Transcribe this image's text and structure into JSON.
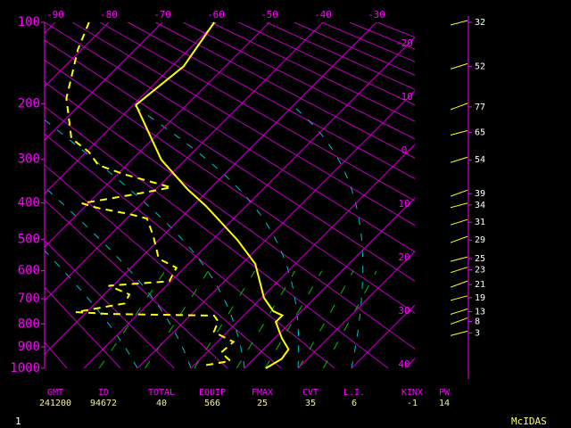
{
  "chart_data": {
    "type": "skew-t",
    "ylim": [
      1000,
      100
    ],
    "yticks": [
      100,
      200,
      300,
      400,
      500,
      600,
      700,
      800,
      900,
      1000
    ],
    "xticks": [
      -90,
      -80,
      -70,
      -60,
      -50,
      -40,
      -30,
      -20,
      -10,
      0,
      10,
      20,
      30,
      40
    ],
    "series": [
      {
        "color": "#ffff00",
        "style": "solid",
        "pressure": [
          100,
          148,
          202,
          301,
          367,
          408,
          502,
          577,
          697,
          748,
          765,
          792,
          860,
          911,
          955,
          1000
        ],
        "values": [
          -60.3,
          -57.8,
          -59.5,
          -44.5,
          -34,
          -27.5,
          -15.3,
          -7.5,
          0.5,
          4.7,
          7.2,
          7.2,
          11.3,
          14.7,
          15.2,
          14
        ]
      },
      {
        "color": "#ffff00",
        "style": "dashed",
        "pressure": [
          100,
          128,
          192,
          259,
          285,
          312,
          332,
          362,
          379,
          401,
          413,
          429,
          441,
          491,
          560,
          590,
          636,
          652,
          684,
          718,
          752,
          759,
          766,
          789,
          834,
          877,
          925,
          965,
          987
        ],
        "values": [
          -83.7,
          -80.7,
          -73.7,
          -65.3,
          -59.5,
          -55.3,
          -48.7,
          -37.5,
          -43.2,
          -51.2,
          -47.3,
          -40.3,
          -36.2,
          -31.7,
          -26.5,
          -21.5,
          -20.3,
          -30.8,
          -25.3,
          -24.5,
          -32,
          -25.8,
          -5.5,
          -3.7,
          -2.5,
          3,
          2.7,
          6,
          1.8
        ]
      }
    ],
    "winds": {
      "color": "#ffff00",
      "pressure": [
        100,
        148,
        205,
        248,
        301,
        377,
        405,
        451,
        502,
        560,
        597,
        648,
        696,
        750,
        790,
        838
      ],
      "values": [
        32,
        52,
        77,
        65,
        54,
        39,
        34,
        31,
        29,
        25,
        23,
        21,
        19,
        13,
        8,
        3
      ]
    }
  },
  "stats": {
    "headers": [
      "GMT",
      "ID",
      "TOTAL",
      "EQUIP",
      "FMAX",
      "CVT",
      "L.I.",
      "KINX",
      "PW"
    ],
    "values": [
      241200,
      94672,
      40,
      566,
      25,
      35,
      6,
      -1,
      14
    ]
  },
  "footer": {
    "page": 1,
    "product": "McIDAS"
  }
}
